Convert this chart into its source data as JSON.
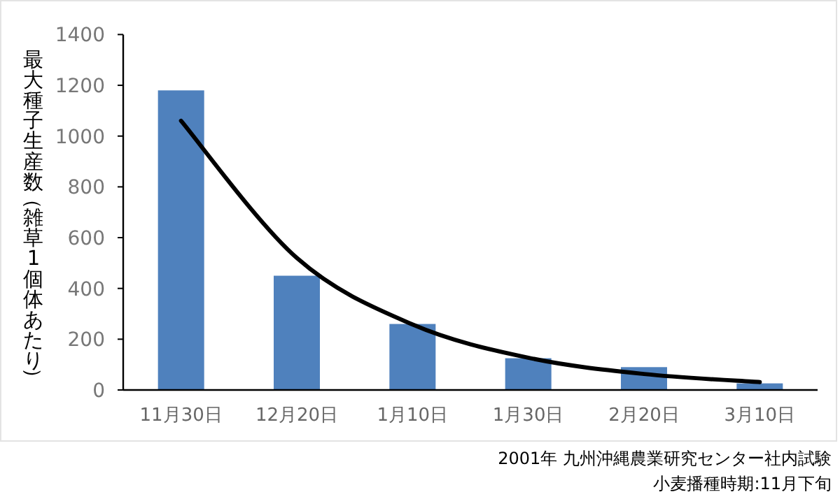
{
  "chart_data": {
    "type": "bar",
    "ylabel": "最大種子生産数（雑草1個体あたり）",
    "categories": [
      "11月30日",
      "12月20日",
      "1月10日",
      "1月30日",
      "2月20日",
      "3月10日"
    ],
    "series": [
      {
        "color": "#4f81bd",
        "values": [
          1180,
          450,
          260,
          125,
          90,
          26
        ]
      },
      {
        "type": "line",
        "color": "#000000",
        "x": [
          "11月30日",
          "12月20日",
          "1月10日",
          "1月30日",
          "2月20日",
          "3月10日"
        ],
        "values": [
          1060,
          520,
          258,
          127,
          63,
          31
        ]
      }
    ],
    "ylim": [
      0,
      1400
    ],
    "yticks": [
      0,
      200,
      400,
      600,
      800,
      1000,
      1200,
      1400
    ],
    "grid": false,
    "annotations": [
      "2001年 九州沖縄農業研究センター社内試験",
      "小麦播種時期:11月下旬"
    ]
  }
}
